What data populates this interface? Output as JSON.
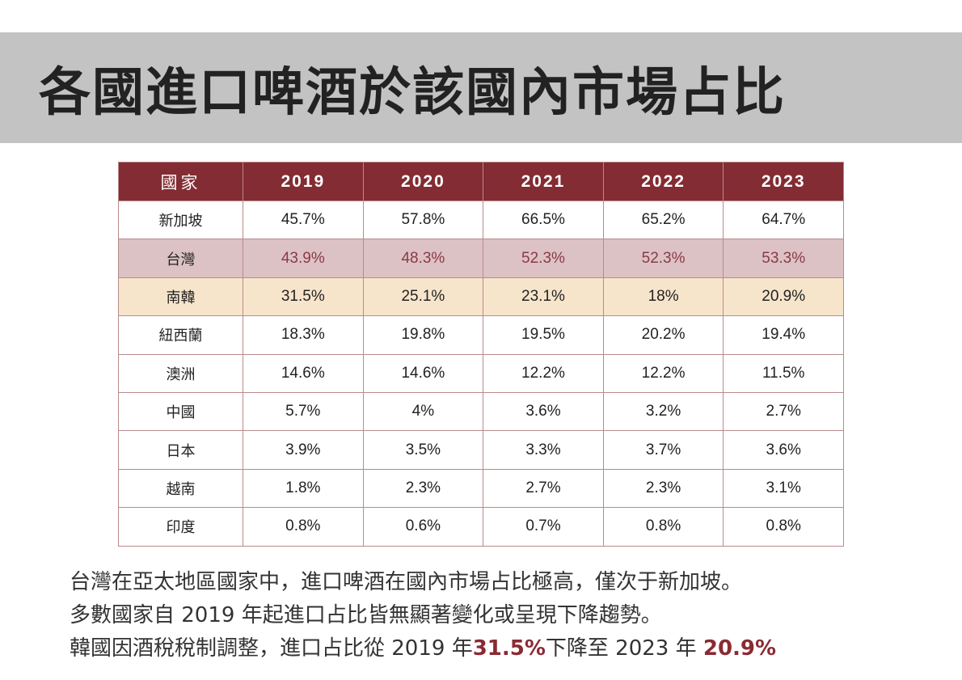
{
  "title": "各國進口啤酒於該國內市場占比",
  "table": {
    "headers": [
      "國家",
      "2019",
      "2020",
      "2021",
      "2022",
      "2023"
    ],
    "rows": [
      [
        "新加坡",
        "45.7%",
        "57.8%",
        "66.5%",
        "65.2%",
        "64.7%"
      ],
      [
        "台灣",
        "43.9%",
        "48.3%",
        "52.3%",
        "52.3%",
        "53.3%"
      ],
      [
        "南韓",
        "31.5%",
        "25.1%",
        "23.1%",
        "18%",
        "20.9%"
      ],
      [
        "紐西蘭",
        "18.3%",
        "19.8%",
        "19.5%",
        "20.2%",
        "19.4%"
      ],
      [
        "澳洲",
        "14.6%",
        "14.6%",
        "12.2%",
        "12.2%",
        "11.5%"
      ],
      [
        "中國",
        "5.7%",
        "4%",
        "3.6%",
        "3.2%",
        "2.7%"
      ],
      [
        "日本",
        "3.9%",
        "3.5%",
        "3.3%",
        "3.7%",
        "3.6%"
      ],
      [
        "越南",
        "1.8%",
        "2.3%",
        "2.7%",
        "2.3%",
        "3.1%"
      ],
      [
        "印度",
        "0.8%",
        "0.6%",
        "0.7%",
        "0.8%",
        "0.8%"
      ]
    ]
  },
  "notes": {
    "line1": "台灣在亞太地區國家中，進口啤酒在國內市場占比極高，僅次于新加坡。",
    "line2": "多數國家自 2019 年起進口占比皆無顯著變化或呈現下降趨勢。",
    "line3_a": "韓國因酒稅稅制調整，進口占比從 2019 年",
    "line3_b": "31.5%",
    "line3_c": "下降至 2023 年 ",
    "line3_d": "20.9%"
  },
  "colors": {
    "header": "#832c33",
    "taiwan_row": "#dcc2c5",
    "korea_row": "#f7e5cb",
    "highlight": "#8a2a33",
    "title_bar": "#c3c3c3"
  }
}
